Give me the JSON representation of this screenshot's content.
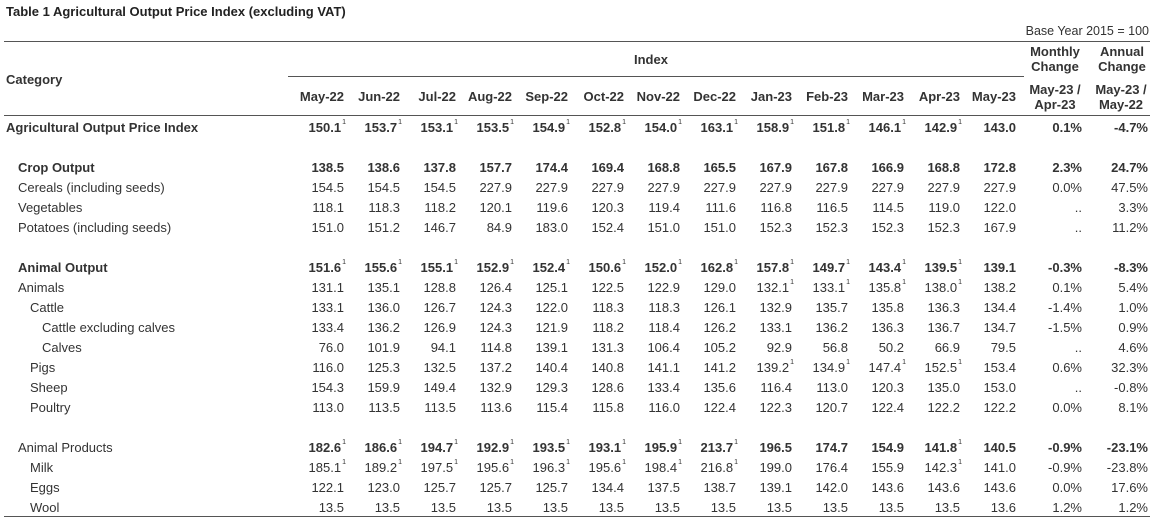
{
  "title": "Table 1    Agricultural Output Price Index (excluding VAT)",
  "base_year": "Base Year 2015 = 100",
  "headers": {
    "category": "Category",
    "index": "Index",
    "monthly_change": [
      "Monthly",
      "Change"
    ],
    "annual_change": [
      "Annual",
      "Change"
    ],
    "monthly_period": [
      "May-23 /",
      "Apr-23"
    ],
    "annual_period": [
      "May-23 /",
      "May-22"
    ],
    "months": [
      "May-22",
      "Jun-22",
      "Jul-22",
      "Aug-22",
      "Sep-22",
      "Oct-22",
      "Nov-22",
      "Dec-22",
      "Jan-23",
      "Feb-23",
      "Mar-23",
      "Apr-23",
      "May-23"
    ]
  },
  "footnote_marker": "1",
  "rows": [
    {
      "label": "Agricultural Output Price Index",
      "indent": 0,
      "bold": true,
      "values": [
        "150.1",
        "153.7",
        "153.1",
        "153.5",
        "154.9",
        "152.8",
        "154.0",
        "163.1",
        "158.9",
        "151.8",
        "146.1",
        "142.9",
        "143.0"
      ],
      "sup": [
        1,
        1,
        1,
        1,
        1,
        1,
        1,
        1,
        1,
        1,
        1,
        1,
        0
      ],
      "monthly": "0.1%",
      "annual": "-4.7%"
    },
    {
      "label": "Crop Output",
      "indent": 1,
      "bold": true,
      "values": [
        "138.5",
        "138.6",
        "137.8",
        "157.7",
        "174.4",
        "169.4",
        "168.8",
        "165.5",
        "167.9",
        "167.8",
        "166.9",
        "168.8",
        "172.8"
      ],
      "sup": [
        0,
        0,
        0,
        0,
        0,
        0,
        0,
        0,
        0,
        0,
        0,
        0,
        0
      ],
      "monthly": "2.3%",
      "annual": "24.7%"
    },
    {
      "label": "Cereals (including seeds)",
      "indent": 1,
      "bold": false,
      "values": [
        "154.5",
        "154.5",
        "154.5",
        "227.9",
        "227.9",
        "227.9",
        "227.9",
        "227.9",
        "227.9",
        "227.9",
        "227.9",
        "227.9",
        "227.9"
      ],
      "sup": [
        0,
        0,
        0,
        0,
        0,
        0,
        0,
        0,
        0,
        0,
        0,
        0,
        0
      ],
      "monthly": "0.0%",
      "annual": "47.5%"
    },
    {
      "label": "Vegetables",
      "indent": 1,
      "bold": false,
      "values": [
        "118.1",
        "118.3",
        "118.2",
        "120.1",
        "119.6",
        "120.3",
        "119.4",
        "111.6",
        "116.8",
        "116.5",
        "114.5",
        "119.0",
        "122.0"
      ],
      "sup": [
        0,
        0,
        0,
        0,
        0,
        0,
        0,
        0,
        0,
        0,
        0,
        0,
        0
      ],
      "monthly": "..",
      "annual": "3.3%"
    },
    {
      "label": "Potatoes (including seeds)",
      "indent": 1,
      "bold": false,
      "values": [
        "151.0",
        "151.2",
        "146.7",
        "84.9",
        "183.0",
        "152.4",
        "151.0",
        "151.0",
        "152.3",
        "152.3",
        "152.3",
        "152.3",
        "167.9"
      ],
      "sup": [
        0,
        0,
        0,
        0,
        0,
        0,
        0,
        0,
        0,
        0,
        0,
        0,
        0
      ],
      "monthly": "..",
      "annual": "11.2%"
    },
    {
      "label": "Animal Output",
      "indent": 1,
      "bold": true,
      "values": [
        "151.6",
        "155.6",
        "155.1",
        "152.9",
        "152.4",
        "150.6",
        "152.0",
        "162.8",
        "157.8",
        "149.7",
        "143.4",
        "139.5",
        "139.1"
      ],
      "sup": [
        1,
        1,
        1,
        1,
        1,
        1,
        1,
        1,
        1,
        1,
        1,
        1,
        0
      ],
      "monthly": "-0.3%",
      "annual": "-8.3%"
    },
    {
      "label": "Animals",
      "indent": 1,
      "bold": false,
      "values": [
        "131.1",
        "135.1",
        "128.8",
        "126.4",
        "125.1",
        "122.5",
        "122.9",
        "129.0",
        "132.1",
        "133.1",
        "135.8",
        "138.0",
        "138.2"
      ],
      "sup": [
        0,
        0,
        0,
        0,
        0,
        0,
        0,
        0,
        1,
        1,
        1,
        1,
        0
      ],
      "monthly": "0.1%",
      "annual": "5.4%"
    },
    {
      "label": "Cattle",
      "indent": 2,
      "bold": false,
      "values": [
        "133.1",
        "136.0",
        "126.7",
        "124.3",
        "122.0",
        "118.3",
        "118.3",
        "126.1",
        "132.9",
        "135.7",
        "135.8",
        "136.3",
        "134.4"
      ],
      "sup": [
        0,
        0,
        0,
        0,
        0,
        0,
        0,
        0,
        0,
        0,
        0,
        0,
        0
      ],
      "monthly": "-1.4%",
      "annual": "1.0%"
    },
    {
      "label": "Cattle excluding calves",
      "indent": 3,
      "bold": false,
      "values": [
        "133.4",
        "136.2",
        "126.9",
        "124.3",
        "121.9",
        "118.2",
        "118.4",
        "126.2",
        "133.1",
        "136.2",
        "136.3",
        "136.7",
        "134.7"
      ],
      "sup": [
        0,
        0,
        0,
        0,
        0,
        0,
        0,
        0,
        0,
        0,
        0,
        0,
        0
      ],
      "monthly": "-1.5%",
      "annual": "0.9%"
    },
    {
      "label": "Calves",
      "indent": 3,
      "bold": false,
      "values": [
        "76.0",
        "101.9",
        "94.1",
        "114.8",
        "139.1",
        "131.3",
        "106.4",
        "105.2",
        "92.9",
        "56.8",
        "50.2",
        "66.9",
        "79.5"
      ],
      "sup": [
        0,
        0,
        0,
        0,
        0,
        0,
        0,
        0,
        0,
        0,
        0,
        0,
        0
      ],
      "monthly": "..",
      "annual": "4.6%"
    },
    {
      "label": "Pigs",
      "indent": 2,
      "bold": false,
      "values": [
        "116.0",
        "125.3",
        "132.5",
        "137.2",
        "140.4",
        "140.8",
        "141.1",
        "141.2",
        "139.2",
        "134.9",
        "147.4",
        "152.5",
        "153.4"
      ],
      "sup": [
        0,
        0,
        0,
        0,
        0,
        0,
        0,
        0,
        1,
        1,
        1,
        1,
        0
      ],
      "monthly": "0.6%",
      "annual": "32.3%"
    },
    {
      "label": "Sheep",
      "indent": 2,
      "bold": false,
      "values": [
        "154.3",
        "159.9",
        "149.4",
        "132.9",
        "129.3",
        "128.6",
        "133.4",
        "135.6",
        "116.4",
        "113.0",
        "120.3",
        "135.0",
        "153.0"
      ],
      "sup": [
        0,
        0,
        0,
        0,
        0,
        0,
        0,
        0,
        0,
        0,
        0,
        0,
        0
      ],
      "monthly": "..",
      "annual": "-0.8%"
    },
    {
      "label": "Poultry",
      "indent": 2,
      "bold": false,
      "values": [
        "113.0",
        "113.5",
        "113.5",
        "113.6",
        "115.4",
        "115.8",
        "116.0",
        "122.4",
        "122.3",
        "120.7",
        "122.4",
        "122.2",
        "122.2"
      ],
      "sup": [
        0,
        0,
        0,
        0,
        0,
        0,
        0,
        0,
        0,
        0,
        0,
        0,
        0
      ],
      "monthly": "0.0%",
      "annual": "8.1%"
    },
    {
      "label": "Animal Products",
      "indent": 1,
      "bold": false,
      "bold_values": true,
      "values": [
        "182.6",
        "186.6",
        "194.7",
        "192.9",
        "193.5",
        "193.1",
        "195.9",
        "213.7",
        "196.5",
        "174.7",
        "154.9",
        "141.8",
        "140.5"
      ],
      "sup": [
        1,
        1,
        1,
        1,
        1,
        1,
        1,
        1,
        0,
        0,
        0,
        1,
        0
      ],
      "monthly": "-0.9%",
      "annual": "-23.1%"
    },
    {
      "label": "Milk",
      "indent": 2,
      "bold": false,
      "values": [
        "185.1",
        "189.2",
        "197.5",
        "195.6",
        "196.3",
        "195.6",
        "198.4",
        "216.8",
        "199.0",
        "176.4",
        "155.9",
        "142.3",
        "141.0"
      ],
      "sup": [
        1,
        1,
        1,
        1,
        1,
        1,
        1,
        1,
        0,
        0,
        0,
        1,
        0
      ],
      "monthly": "-0.9%",
      "annual": "-23.8%"
    },
    {
      "label": "Eggs",
      "indent": 2,
      "bold": false,
      "values": [
        "122.1",
        "123.0",
        "125.7",
        "125.7",
        "125.7",
        "134.4",
        "137.5",
        "138.7",
        "139.1",
        "142.0",
        "143.6",
        "143.6",
        "143.6"
      ],
      "sup": [
        0,
        0,
        0,
        0,
        0,
        0,
        0,
        0,
        0,
        0,
        0,
        0,
        0
      ],
      "monthly": "0.0%",
      "annual": "17.6%"
    },
    {
      "label": "Wool",
      "indent": 2,
      "bold": false,
      "values": [
        "13.5",
        "13.5",
        "13.5",
        "13.5",
        "13.5",
        "13.5",
        "13.5",
        "13.5",
        "13.5",
        "13.5",
        "13.5",
        "13.5",
        "13.6"
      ],
      "sup": [
        0,
        0,
        0,
        0,
        0,
        0,
        0,
        0,
        0,
        0,
        0,
        0,
        0
      ],
      "monthly": "1.2%",
      "annual": "1.2%"
    }
  ]
}
